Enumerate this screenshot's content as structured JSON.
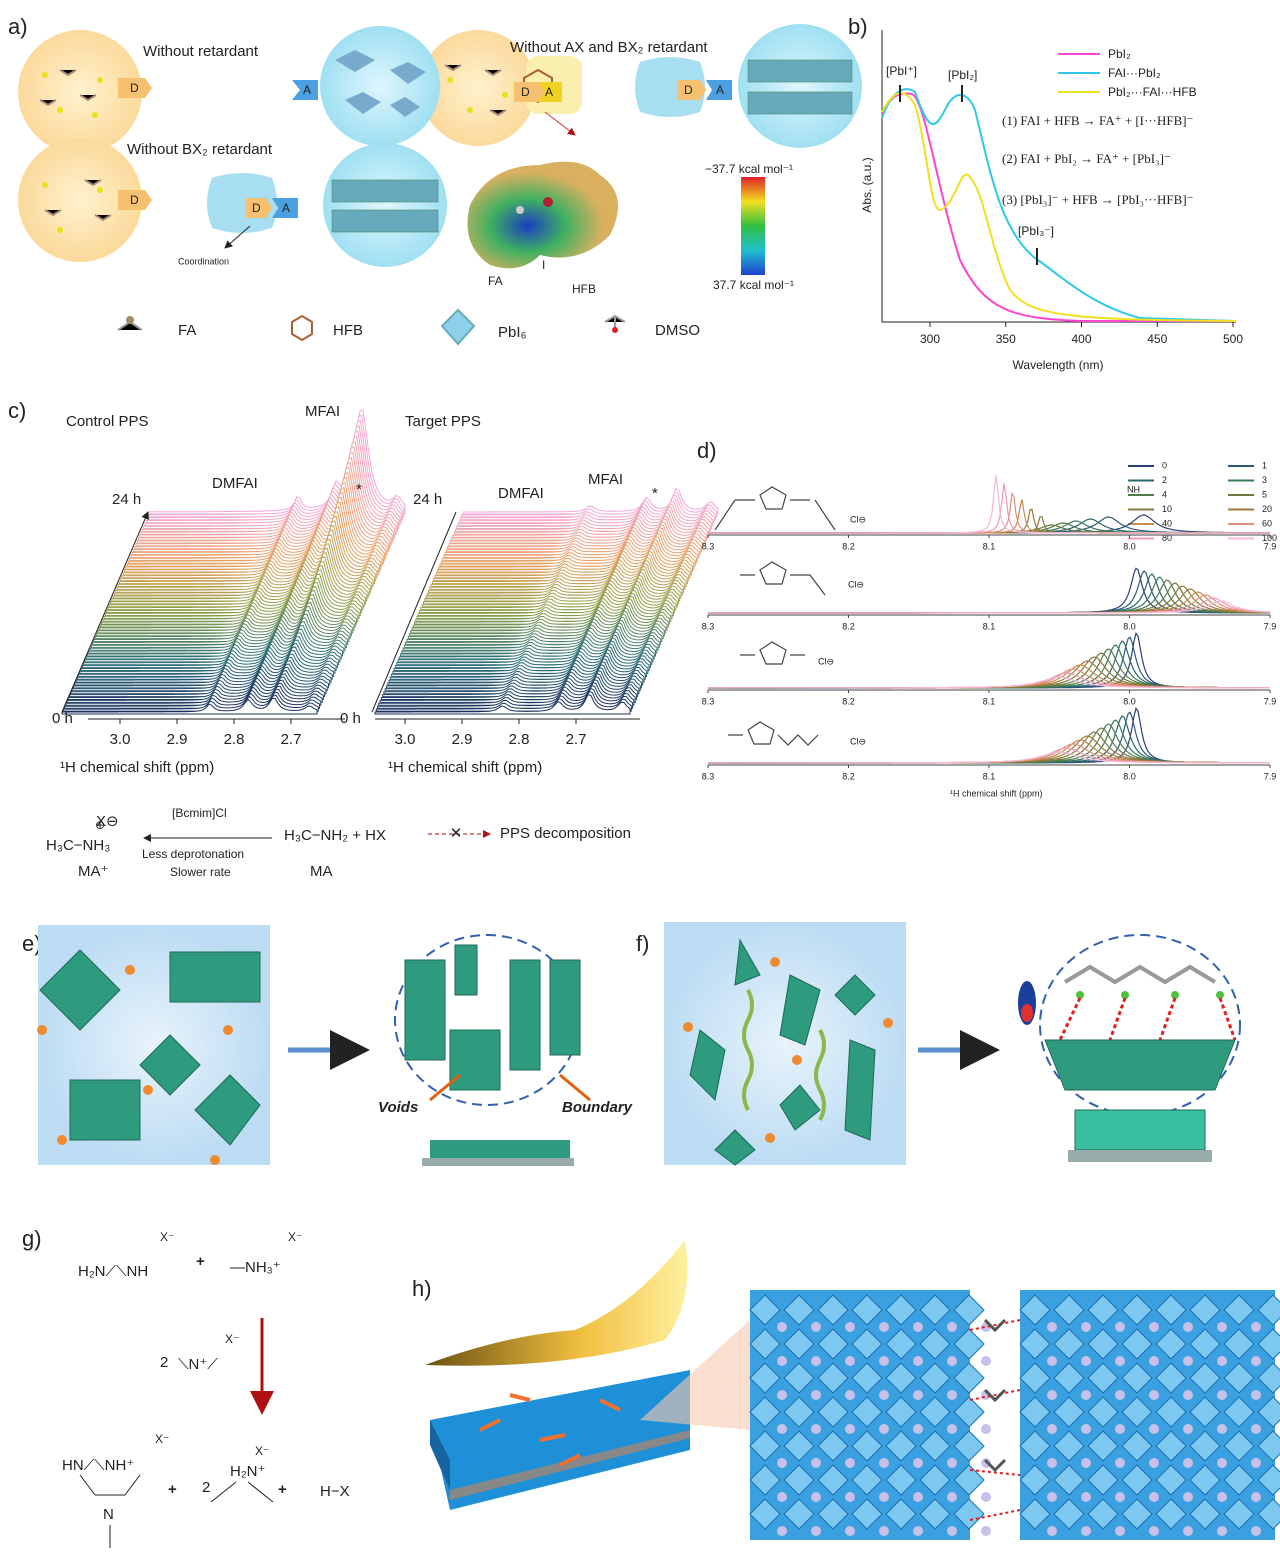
{
  "panels": {
    "a": {
      "label": "a)",
      "without_retardant": "Without retardant",
      "without_ax_bx2": "Without AX and BX₂ retardant",
      "without_bx2": "Without BX₂ retardant",
      "donor": "D",
      "acceptor": "A",
      "coordination": "Coordination",
      "fa": "FA",
      "iodine": "I",
      "hfb": "HFB",
      "scale_top": "−37.7 kcal mol⁻¹",
      "scale_bottom": "37.7 kcal mol⁻¹",
      "legend": [
        "FA",
        "HFB",
        "PbI₆",
        "DMSO"
      ]
    },
    "b": {
      "label": "b)",
      "peaks": [
        "[PbI⁺]",
        "[PbI₂]",
        "[PbI₃⁻]"
      ],
      "legend": [
        "PbI₂",
        "FAI···PbI₂",
        "PbI₂···FAI···HFB"
      ],
      "equations": [
        "(1)   FAI + HFB → FA⁺ + [I···HFB]⁻",
        "(2)   FAI + PbI₂ → FA⁺ + [PbI₃]⁻",
        "(3)  [PbI₃]⁻ + HFB → [PbI₃···HFB]⁻"
      ],
      "ylabel": "Abs. (a.u.)",
      "xlabel": "Wavelength (nm)",
      "xticks": [
        300,
        350,
        400,
        450,
        500
      ]
    },
    "c": {
      "label": "c)",
      "control": "Control PPS",
      "target": "Target PPS",
      "dmfai": "DMFAI",
      "mfai": "MFAI",
      "star": "*",
      "top_time": "24 h",
      "bottom_time": "0 h",
      "xticks": [
        "3.0",
        "2.9",
        "2.8",
        "2.7"
      ],
      "xlabel": "¹H chemical shift (ppm)",
      "reaction": {
        "anion": "X⊖",
        "left": "H₃C−NH₃",
        "plus": "⊕",
        "left_name": "MA⁺",
        "catalyst": "[Bcmim]Cl",
        "note1": "Less deprotonation",
        "note2": "Slower rate",
        "right": "H₃C−NH₂ + HX",
        "right_name": "MA",
        "result": "PPS decomposition"
      }
    },
    "d": {
      "label": "d)",
      "legend": [
        "0",
        "1",
        "2",
        "3",
        "4",
        "5",
        "10",
        "20",
        "40",
        "60",
        "80",
        "100"
      ],
      "nh": "NH",
      "xticks": [
        "8.3",
        "8.2",
        "8.1",
        "8.0",
        "7.9"
      ],
      "xlabel": "¹H  chemical shift (ppm)",
      "anion": "Cl⊖"
    },
    "e": {
      "label": "e)",
      "voids": "Voids",
      "boundary": "Boundary"
    },
    "f": {
      "label": "f)"
    },
    "g": {
      "label": "g)",
      "anion": "X⁻",
      "formamidine": "H₂N⟋⟍NH",
      "methylamine": "—NH₃⁺",
      "plus": "+",
      "coef": "2",
      "iminium": "⟍N⁺⟋",
      "ring": "HN⟋⟍NH⁺",
      "ring_n": "N",
      "dma": "H₂N⁺",
      "hx": "H−X"
    },
    "h": {
      "label": "h)"
    }
  }
}
